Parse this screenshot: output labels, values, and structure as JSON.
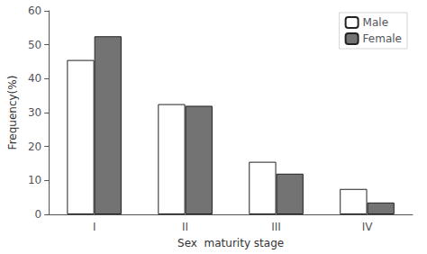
{
  "chart_data": {
    "type": "bar",
    "categories": [
      "I",
      "II",
      "III",
      "IV"
    ],
    "series": [
      {
        "name": "Male",
        "color": "#ffffff",
        "values": [
          45.5,
          32.5,
          15.5,
          7.5
        ]
      },
      {
        "name": "Female",
        "color": "#737373",
        "values": [
          52.5,
          32.0,
          12.0,
          3.5
        ]
      }
    ],
    "xlabel": "Sex  maturity stage",
    "ylabel": "Frequency(%)",
    "ylim": [
      0,
      60
    ],
    "yticks": [
      0,
      10,
      20,
      30,
      40,
      50,
      60
    ],
    "grid": false,
    "legend": "upper right"
  }
}
